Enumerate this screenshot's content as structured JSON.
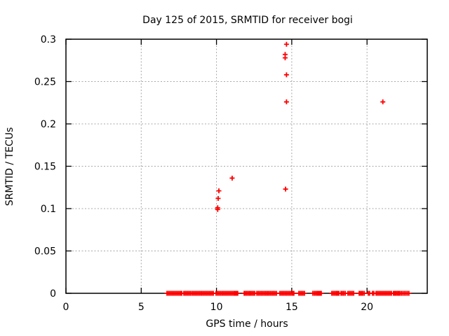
{
  "chart_data": {
    "type": "scatter",
    "title": "Day 125 of 2015, SRMTID for receiver bogi",
    "xlabel": "GPS time / hours",
    "ylabel": "SRMTID / TECUs",
    "xlim": [
      0,
      24
    ],
    "ylim": [
      0,
      0.3
    ],
    "grid": true,
    "legend": "none",
    "xticks": {
      "values": [
        0,
        5,
        10,
        15,
        20
      ],
      "labels": [
        "0",
        "5",
        "10",
        "15",
        "20"
      ]
    },
    "yticks": {
      "values": [
        0,
        0.05,
        0.1,
        0.15,
        0.2,
        0.25,
        0.3
      ],
      "labels": [
        "0",
        "0.05",
        "0.1",
        "0.15",
        "0.2",
        "0.25",
        "0.3"
      ]
    },
    "marker": {
      "shape": "plus",
      "size": 7,
      "stroke_width": 1.8
    },
    "series": [
      {
        "name": "SRMTID",
        "points": [
          [
            10.08,
            0.099
          ],
          [
            10.08,
            0.101
          ],
          [
            10.11,
            0.112
          ],
          [
            10.16,
            0.121
          ],
          [
            11.04,
            0.136
          ],
          [
            14.59,
            0.123
          ],
          [
            14.65,
            0.226
          ],
          [
            14.65,
            0.258
          ],
          [
            14.56,
            0.278
          ],
          [
            14.56,
            0.282
          ],
          [
            14.65,
            0.294
          ],
          [
            21.05,
            0.226
          ]
        ]
      }
    ],
    "baseline_value": 0,
    "baseline_segments": [
      [
        6.71,
        7.55
      ],
      [
        7.64,
        7.69
      ],
      [
        7.83,
        8.29
      ],
      [
        8.39,
        8.95
      ],
      [
        9.04,
        9.79
      ],
      [
        9.97,
        10.35
      ],
      [
        10.44,
        11.09
      ],
      [
        11.18,
        11.22
      ],
      [
        11.28,
        11.32
      ],
      [
        11.37,
        11.41
      ],
      [
        11.84,
        12.54
      ],
      [
        12.68,
        13.24
      ],
      [
        13.33,
        13.42
      ],
      [
        13.51,
        13.7
      ],
      [
        13.79,
        13.98
      ],
      [
        14.21,
        15.05
      ],
      [
        15.1,
        15.14
      ],
      [
        15.47,
        15.84
      ],
      [
        16.4,
        16.5
      ],
      [
        16.59,
        16.68
      ],
      [
        16.73,
        16.78
      ],
      [
        16.82,
        16.96
      ],
      [
        17.66,
        17.94
      ],
      [
        17.99,
        18.13
      ],
      [
        18.27,
        18.36
      ],
      [
        18.45,
        18.55
      ],
      [
        18.73,
        19.11
      ],
      [
        19.48,
        19.53
      ],
      [
        19.62,
        19.67
      ],
      [
        19.71,
        19.81
      ],
      [
        20.08,
        20.17
      ],
      [
        20.36,
        20.45
      ],
      [
        20.6,
        21.62
      ],
      [
        21.76,
        21.9
      ],
      [
        21.95,
        22.04
      ],
      [
        22.09,
        22.13
      ],
      [
        22.18,
        22.78
      ]
    ]
  },
  "colors": {
    "marker": "#ff0000",
    "grid": "#a8a8a8",
    "border": "#000000",
    "text": "#000000",
    "background": "#ffffff"
  }
}
